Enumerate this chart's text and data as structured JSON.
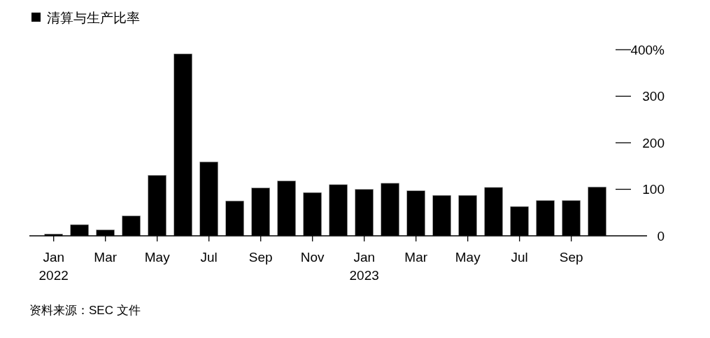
{
  "chart_data": {
    "type": "bar",
    "categories": [
      "Jan 2022",
      null,
      "Mar",
      null,
      "May",
      null,
      "Jul",
      null,
      "Sep",
      null,
      "Nov",
      null,
      "Jan 2023",
      null,
      "Mar",
      null,
      "May",
      null,
      "Jul",
      null,
      "Sep",
      null
    ],
    "series": [
      {
        "name": "清算与生产比率",
        "color": "#000000",
        "values": [
          4,
          24,
          13,
          43,
          130,
          391,
          159,
          75,
          103,
          118,
          93,
          110,
          100,
          113,
          97,
          87,
          87,
          104,
          63,
          76,
          76,
          105
        ]
      }
    ],
    "ylim": [
      0,
      400
    ],
    "yticks": [
      0,
      100,
      200,
      300,
      {
        "value": 400,
        "label": "400%"
      }
    ],
    "legend": "top left",
    "annotations": [
      "资料来源：SEC 文件"
    ]
  }
}
